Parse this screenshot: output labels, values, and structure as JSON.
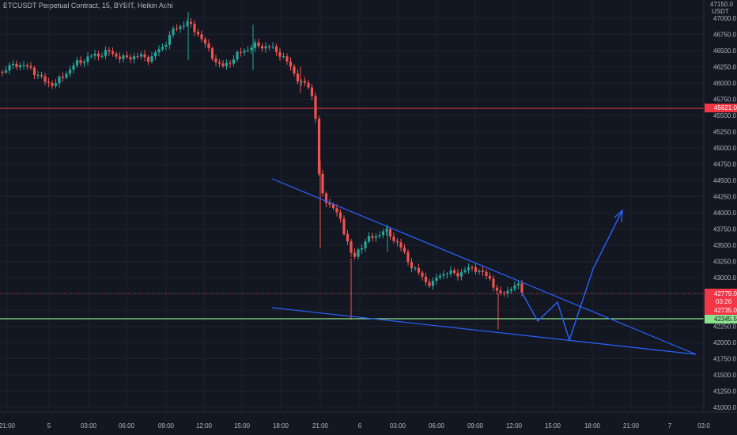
{
  "header": {
    "title": "BTCUSDT Perpetual Contract, 15, BYBIT, Heikin Ashi"
  },
  "price_axis": {
    "currency": "USDT",
    "top_partial": "47150.0",
    "labels": [
      "47000.0",
      "46750.0",
      "46500.0",
      "46250.0",
      "46000.0",
      "45750.0",
      "45500.0",
      "45250.0",
      "45000.0",
      "44750.0",
      "44500.0",
      "44250.0",
      "44000.0",
      "43750.0",
      "43500.0",
      "43250.0",
      "43000.0",
      "42750.0",
      "42500.0",
      "42250.0",
      "42000.0",
      "41750.0",
      "41500.0",
      "41250.0",
      "41000.0"
    ]
  },
  "time_axis": {
    "labels": [
      "21:00",
      "5",
      "03:00",
      "06:00",
      "09:00",
      "12:00",
      "15:00",
      "18:00",
      "21:00",
      "6",
      "03:00",
      "06:00",
      "09:00",
      "12:00",
      "15:00",
      "18:00",
      "21:00",
      "7",
      "03:0"
    ]
  },
  "badges": {
    "resistance": "45621.0",
    "price": "42779.0",
    "countdown": "03:26",
    "low_mark": "42735.0",
    "support": "42345.5"
  },
  "colors": {
    "up": "#26a69a",
    "down": "#ef5350",
    "resistance": "#f23645",
    "support": "#8be28b",
    "drawing": "#2962ff",
    "background": "#131722"
  }
}
